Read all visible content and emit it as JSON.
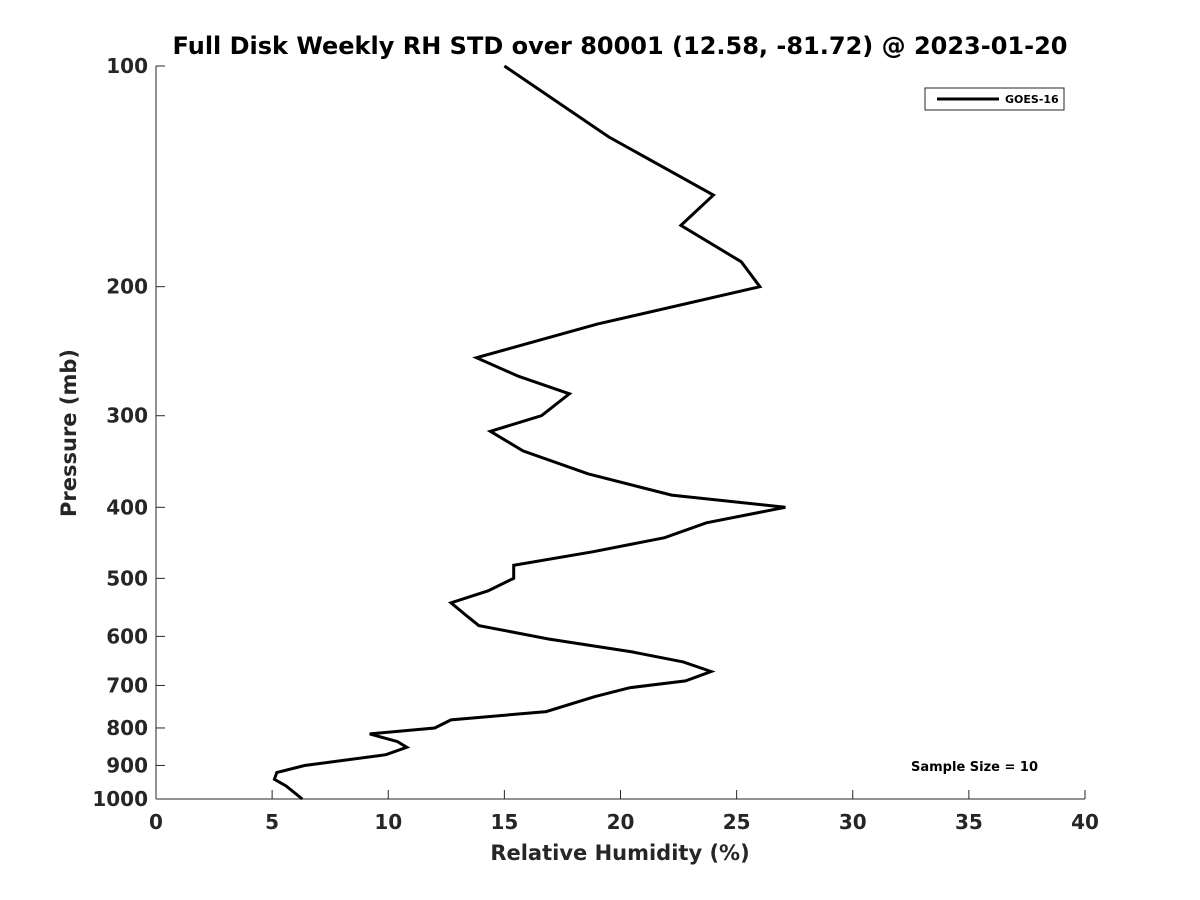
{
  "chart_data": {
    "type": "line",
    "title": "Full Disk Weekly RH STD over 80001 (12.58, -81.72) @ 2023-01-20",
    "xlabel": "Relative Humidity (%)",
    "ylabel": "Pressure (mb)",
    "xlim": [
      0,
      40
    ],
    "ylim": [
      100,
      1000
    ],
    "yscale": "log",
    "xticks": [
      0,
      5,
      10,
      15,
      20,
      25,
      30,
      35,
      40
    ],
    "yticks": [
      100,
      200,
      300,
      400,
      500,
      600,
      700,
      800,
      900,
      1000
    ],
    "legend": {
      "position": "top-right",
      "entries": [
        "GOES-16"
      ]
    },
    "annotation": "Sample Size = 10",
    "series": [
      {
        "name": "GOES-16",
        "color": "#000000",
        "x": [
          15.0,
          19.5,
          24.0,
          22.6,
          25.2,
          26.0,
          19.0,
          13.8,
          15.6,
          17.8,
          16.6,
          14.4,
          15.8,
          18.6,
          22.2,
          27.1,
          23.7,
          21.9,
          18.8,
          15.4,
          15.4,
          14.3,
          12.7,
          13.3,
          13.9,
          16.9,
          20.5,
          22.7,
          23.9,
          22.8,
          20.4,
          18.9,
          16.8,
          12.7,
          12.0,
          9.2,
          10.4,
          10.8,
          9.9,
          6.4,
          5.2,
          5.1,
          5.6,
          6.3
        ],
        "y": [
          100,
          125,
          150,
          165,
          185,
          200,
          225,
          250,
          265,
          280,
          300,
          315,
          335,
          360,
          385,
          400,
          420,
          440,
          460,
          480,
          500,
          520,
          540,
          560,
          580,
          605,
          630,
          650,
          670,
          690,
          705,
          725,
          760,
          780,
          800,
          815,
          835,
          850,
          870,
          900,
          920,
          940,
          960,
          1000
        ]
      }
    ]
  }
}
